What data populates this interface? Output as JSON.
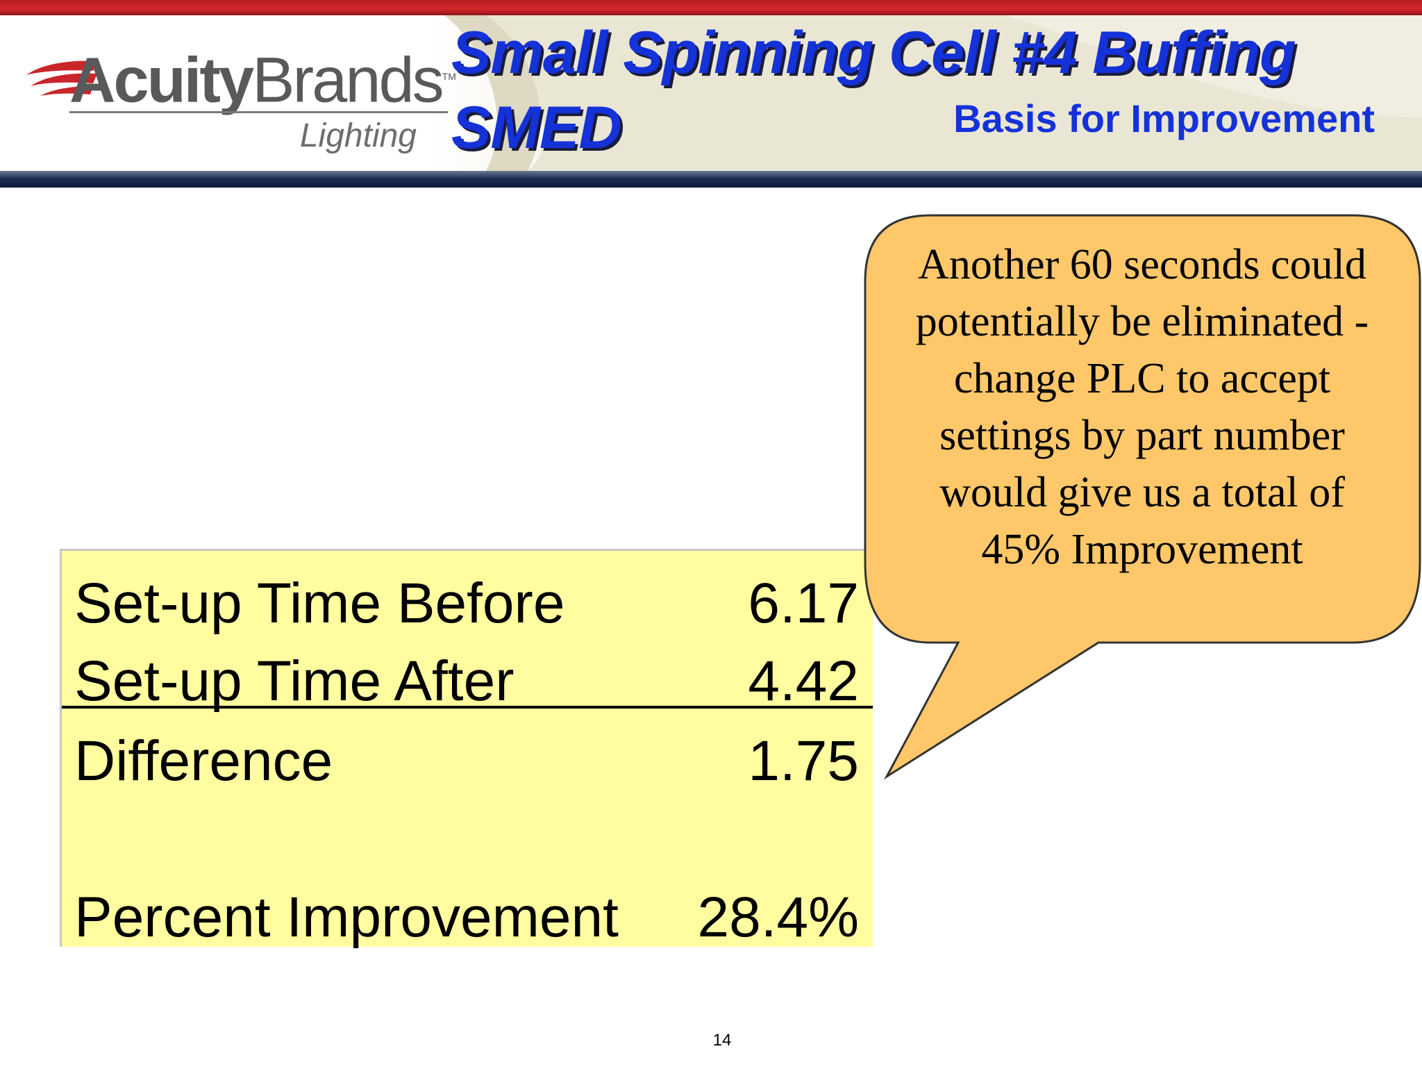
{
  "header": {
    "brand_bold": "Acuity",
    "brand_light": "Brands",
    "brand_tm": "TM",
    "brand_sub": "Lighting",
    "title": "Small Spinning Cell #4 Buffing SMED",
    "subtitle": "Basis for Improvement"
  },
  "table": {
    "rows": [
      {
        "label": "Set-up Time Before",
        "value": "6.17"
      },
      {
        "label": "Set-up Time After",
        "value": "4.42"
      },
      {
        "label": "Difference",
        "value": "1.75"
      },
      {
        "label": "Percent Improvement",
        "value": "28.4%"
      }
    ]
  },
  "callout": {
    "text": "Another 60 seconds could potentially be eliminated - change PLC to accept settings by part number would give us a total of 45% Improvement"
  },
  "footer": {
    "page_number": "14"
  },
  "colors": {
    "title_blue": "#1432d8",
    "table_fill": "#fffd9f",
    "callout_fill": "#fdc76a",
    "stripe_red": "#c9252b",
    "stripe_navy": "#1f2d56"
  }
}
